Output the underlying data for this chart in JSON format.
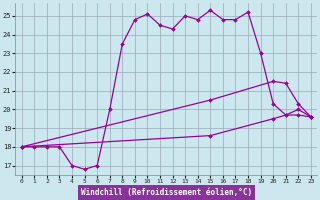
{
  "title": "Windchill (Refroidissement éolien,°C)",
  "bg_color": "#cce8ee",
  "line_color": "#990099",
  "grid_color": "#99aabb",
  "xlim": [
    -0.5,
    23.5
  ],
  "ylim": [
    16.5,
    25.7
  ],
  "yticks": [
    17,
    18,
    19,
    20,
    21,
    22,
    23,
    24,
    25
  ],
  "xticks": [
    0,
    1,
    2,
    3,
    4,
    5,
    6,
    7,
    8,
    9,
    10,
    11,
    12,
    13,
    14,
    15,
    16,
    17,
    18,
    19,
    20,
    21,
    22,
    23
  ],
  "line1_x": [
    0,
    1,
    2,
    3,
    4,
    5,
    6,
    7,
    8,
    9,
    10,
    11,
    12,
    13,
    14,
    15,
    16,
    17,
    18,
    19,
    20,
    21,
    22,
    23
  ],
  "line1_y": [
    18.0,
    18.0,
    18.0,
    18.0,
    17.0,
    16.8,
    17.0,
    20.0,
    23.5,
    24.8,
    25.1,
    24.5,
    24.3,
    25.0,
    24.8,
    25.3,
    24.8,
    24.8,
    25.2,
    23.0,
    20.3,
    19.7,
    20.0,
    19.6
  ],
  "line2_x": [
    0,
    15,
    20,
    21,
    22,
    23
  ],
  "line2_y": [
    18.0,
    20.5,
    21.5,
    21.4,
    20.3,
    19.6
  ],
  "line3_x": [
    0,
    15,
    20,
    21,
    22,
    23
  ],
  "line3_y": [
    18.0,
    18.6,
    19.5,
    19.7,
    19.7,
    19.6
  ],
  "xlabel_bg": "#883399",
  "xlabel_color": "#ffffff",
  "label_fontsize": 5.5
}
